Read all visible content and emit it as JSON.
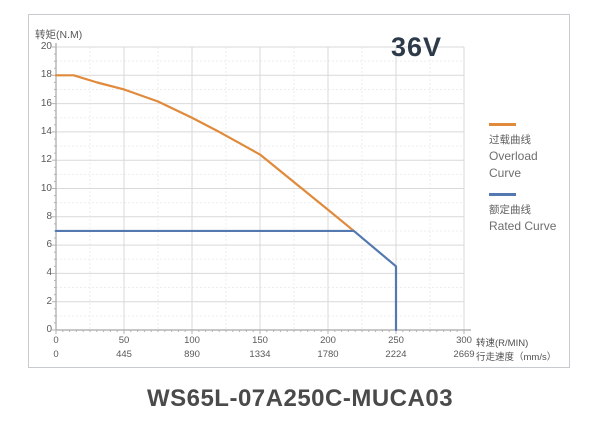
{
  "header": {
    "voltage_label": "36V",
    "voltage_color": "#2D3A4A"
  },
  "footer": {
    "model_title": "WS65L-07A250C-MUCA03",
    "model_title_color": "#4A4A4A"
  },
  "chart_data": {
    "type": "line",
    "title": "36V",
    "ylabel": "转矩(N.M)",
    "y_axis": {
      "min": 0,
      "max": 20,
      "tick_step": 2,
      "ticks": [
        0,
        2,
        4,
        6,
        8,
        10,
        12,
        14,
        16,
        18,
        20
      ]
    },
    "x_axis": {
      "min": 0,
      "max": 300,
      "primary_unit": "转速(R/MIN)",
      "secondary_unit": "行走速度（mm/s）",
      "tick_values": [
        0,
        50,
        100,
        150,
        200,
        250,
        300
      ],
      "primary_ticks": [
        "0",
        "50",
        "100",
        "150",
        "200",
        "250",
        "300"
      ],
      "secondary_ticks": [
        "0",
        "445",
        "890",
        "1334",
        "1780",
        "2224",
        "2669"
      ]
    },
    "series": [
      {
        "id": "overload",
        "name_zh": "过载曲线",
        "name_en": "Overload Curve",
        "color": "#E08A3C",
        "points": [
          [
            0,
            18
          ],
          [
            13,
            18
          ],
          [
            30,
            17.5
          ],
          [
            50,
            17
          ],
          [
            75,
            16.15
          ],
          [
            100,
            15
          ],
          [
            120,
            14
          ],
          [
            135,
            13.2
          ],
          [
            150,
            12.4
          ],
          [
            200,
            8.5
          ],
          [
            219,
            7
          ]
        ]
      },
      {
        "id": "rated",
        "name_zh": "额定曲线",
        "name_en": "Rated Curve",
        "color": "#5478B0",
        "points": [
          [
            0,
            7
          ],
          [
            219,
            7
          ],
          [
            250,
            4.5
          ],
          [
            250,
            0
          ]
        ]
      }
    ],
    "grid": {
      "major_color": "#d9d9d9",
      "minor_color": "#ededed",
      "axis_color": "#a6a6a6",
      "legend_position": "right",
      "grid_on": true
    }
  }
}
